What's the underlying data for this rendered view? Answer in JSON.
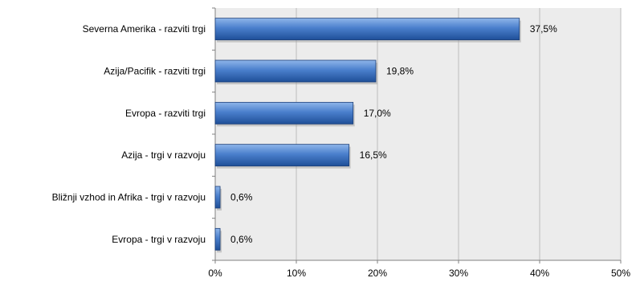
{
  "chart_data": {
    "type": "bar",
    "orientation": "horizontal",
    "categories": [
      "Severna Amerika - razviti trgi",
      "Azija/Pacifik - razviti trgi",
      "Evropa - razviti trgi",
      "Azija - trgi v razvoju",
      "Bližnji vzhod in Afrika - trgi v razvoju",
      "Evropa - trgi v razvoju"
    ],
    "values": [
      37.5,
      19.8,
      17.0,
      16.5,
      0.6,
      0.6
    ],
    "data_labels": [
      "37,5%",
      "19,8%",
      "17,0%",
      "16,5%",
      "0,6%",
      "0,6%"
    ],
    "x_ticks": [
      "0%",
      "10%",
      "20%",
      "30%",
      "40%",
      "50%"
    ],
    "xlim": [
      0,
      50
    ],
    "grid": true,
    "legend": "none",
    "title": "",
    "xlabel": "",
    "ylabel": "",
    "colors": {
      "bar_light": "#8fb6ea",
      "bar_mid": "#4a7fcc",
      "bar_dark": "#1f4f98",
      "bar_edge": "#1c3f78",
      "plot_bg": "#ececec",
      "grid": "#bcbcbc",
      "axis": "#808080"
    }
  }
}
